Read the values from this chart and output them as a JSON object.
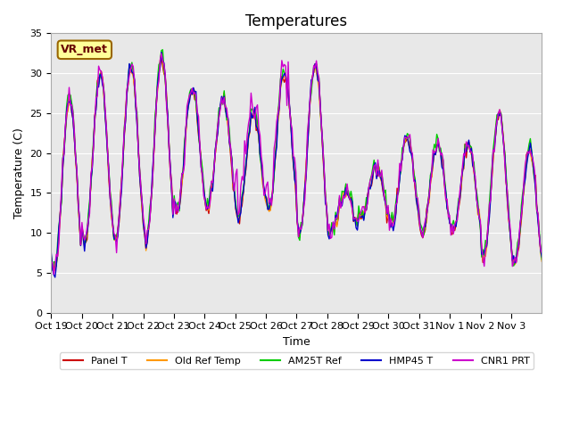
{
  "title": "Temperatures",
  "ylabel": "Temperature (C)",
  "xlabel": "Time",
  "annotation": "VR_met",
  "ylim": [
    0,
    35
  ],
  "yticks": [
    0,
    5,
    10,
    15,
    20,
    25,
    30,
    35
  ],
  "xtick_labels": [
    "Oct 19",
    "Oct 20",
    "Oct 21",
    "Oct 22",
    "Oct 23",
    "Oct 24",
    "Oct 25",
    "Oct 26",
    "Oct 27",
    "Oct 28",
    "Oct 29",
    "Oct 30",
    "Oct 31",
    "Nov 1",
    "Nov 2",
    "Nov 3"
  ],
  "colors": {
    "Panel T": "#cc0000",
    "Old Ref Temp": "#ff9900",
    "AM25T Ref": "#00cc00",
    "HMP45 T": "#0000cc",
    "CNR1 PRT": "#cc00cc"
  },
  "legend_labels": [
    "Panel T",
    "Old Ref Temp",
    "AM25T Ref",
    "HMP45 T",
    "CNR1 PRT"
  ],
  "bg_color": "#e8e8e8",
  "fig_bg_color": "#ffffff",
  "title_fontsize": 12,
  "label_fontsize": 9,
  "tick_fontsize": 8,
  "line_width": 1.0,
  "n_days": 16
}
